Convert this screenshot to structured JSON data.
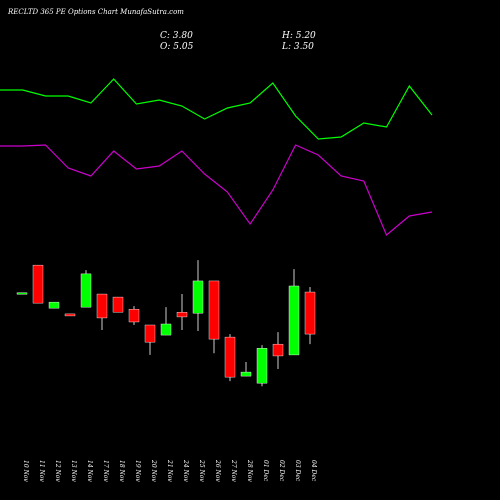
{
  "chart_data": [
    {
      "type": "line",
      "ylim": [
        0,
        100
      ],
      "series": [
        {
          "color": "#00ff00",
          "values": [
            64,
            64,
            61.6,
            61.6,
            58.8,
            68.4,
            58.4,
            60,
            57.6,
            52.4,
            56.8,
            58.8,
            66.8,
            53.6,
            44.4,
            45.2,
            50.8,
            49.2,
            65.6,
            54
          ]
        },
        {
          "color": "#cc00cc",
          "values": [
            41.6,
            41.6,
            42,
            32.8,
            29.6,
            39.6,
            32.4,
            33.6,
            39.6,
            30.4,
            23.2,
            10.4,
            24,
            42,
            38,
            29.6,
            27.6,
            6,
            13.6,
            15.2
          ]
        }
      ]
    },
    {
      "type": "candlestick",
      "title": "RECLTD 365 PE Options  Chart MunafaSutra.com",
      "info": [
        "C: 3.80",
        "H: 5.20",
        "O: 5.05",
        "L: 3.50"
      ],
      "up_color": "#00ff00",
      "down_color": "#ff0000",
      "ylim": [
        1.84,
        6.3
      ],
      "categories": [
        "10 Nov",
        "11 Nov",
        "12 Nov",
        "13 Nov",
        "14 Nov",
        "17 Nov",
        "18 Nov",
        "19 Nov",
        "20 Nov",
        "21 Nov",
        "24 Nov",
        "25 Nov",
        "26 Nov",
        "27 Nov",
        "28 Nov",
        "01 Dec",
        "02 Dec",
        "03 Dec",
        "04 Dec"
      ],
      "open": [
        5.0,
        5.85,
        4.57,
        4.4,
        4.6,
        4.99,
        4.9,
        4.54,
        4.07,
        3.77,
        4.45,
        4.42,
        5.38,
        3.71,
        2.55,
        2.34,
        3.5,
        3.18,
        5.05
      ],
      "high": [
        5.03,
        5.85,
        4.75,
        4.4,
        5.7,
        4.99,
        4.9,
        4.63,
        4.07,
        4.6,
        4.99,
        6.0,
        5.38,
        3.8,
        2.97,
        3.47,
        3.86,
        5.73,
        5.2
      ],
      "low": [
        5.0,
        4.72,
        4.57,
        4.34,
        4.6,
        3.92,
        4.45,
        4.07,
        3.18,
        3.77,
        3.92,
        3.89,
        3.23,
        2.4,
        2.55,
        2.25,
        2.76,
        3.18,
        3.5
      ],
      "close": [
        5.03,
        4.72,
        4.75,
        4.34,
        5.59,
        4.28,
        4.45,
        4.16,
        3.56,
        4.1,
        4.31,
        5.38,
        3.65,
        2.52,
        2.67,
        3.38,
        3.15,
        5.23,
        3.8
      ]
    }
  ]
}
